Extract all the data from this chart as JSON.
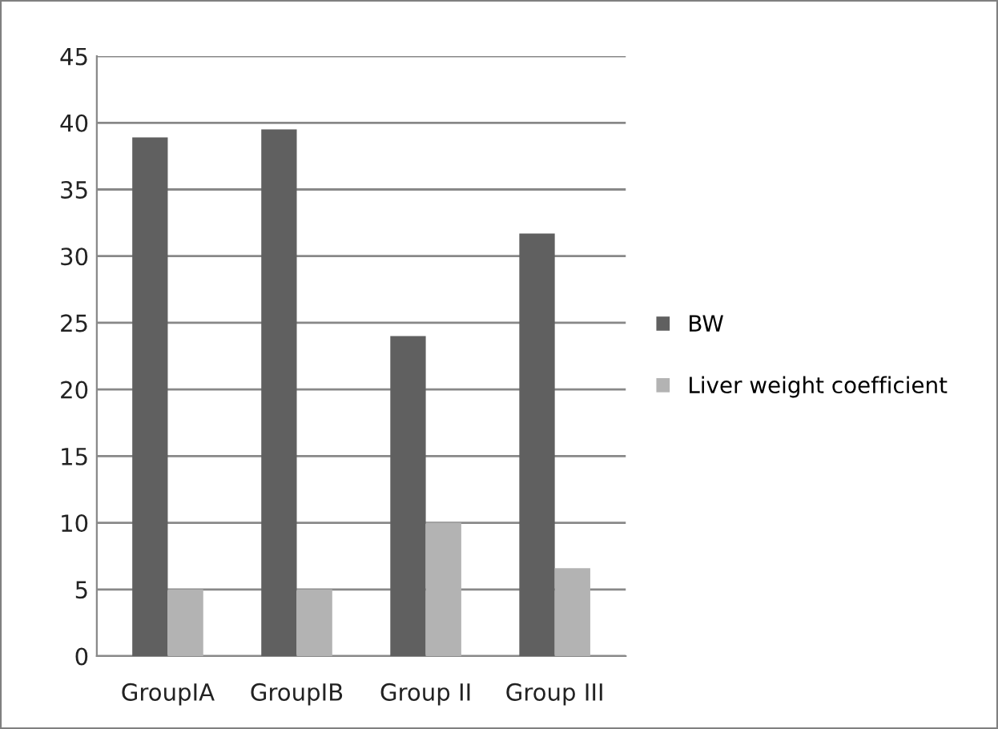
{
  "chart_data": {
    "type": "bar",
    "categories": [
      "GroupIA",
      "GroupIB",
      "Group II",
      "Group III"
    ],
    "series": [
      {
        "name": "BW",
        "color": "#606060",
        "values": [
          38.9,
          39.5,
          24.0,
          31.7
        ]
      },
      {
        "name": "Liver weight coefficient",
        "color": "#b3b3b3",
        "values": [
          5.0,
          5.0,
          10.0,
          6.6
        ]
      }
    ],
    "ylim": [
      0,
      45
    ],
    "yticks": [
      0,
      5,
      10,
      15,
      20,
      25,
      30,
      35,
      40,
      45
    ],
    "grid": "y",
    "legend": "right"
  }
}
